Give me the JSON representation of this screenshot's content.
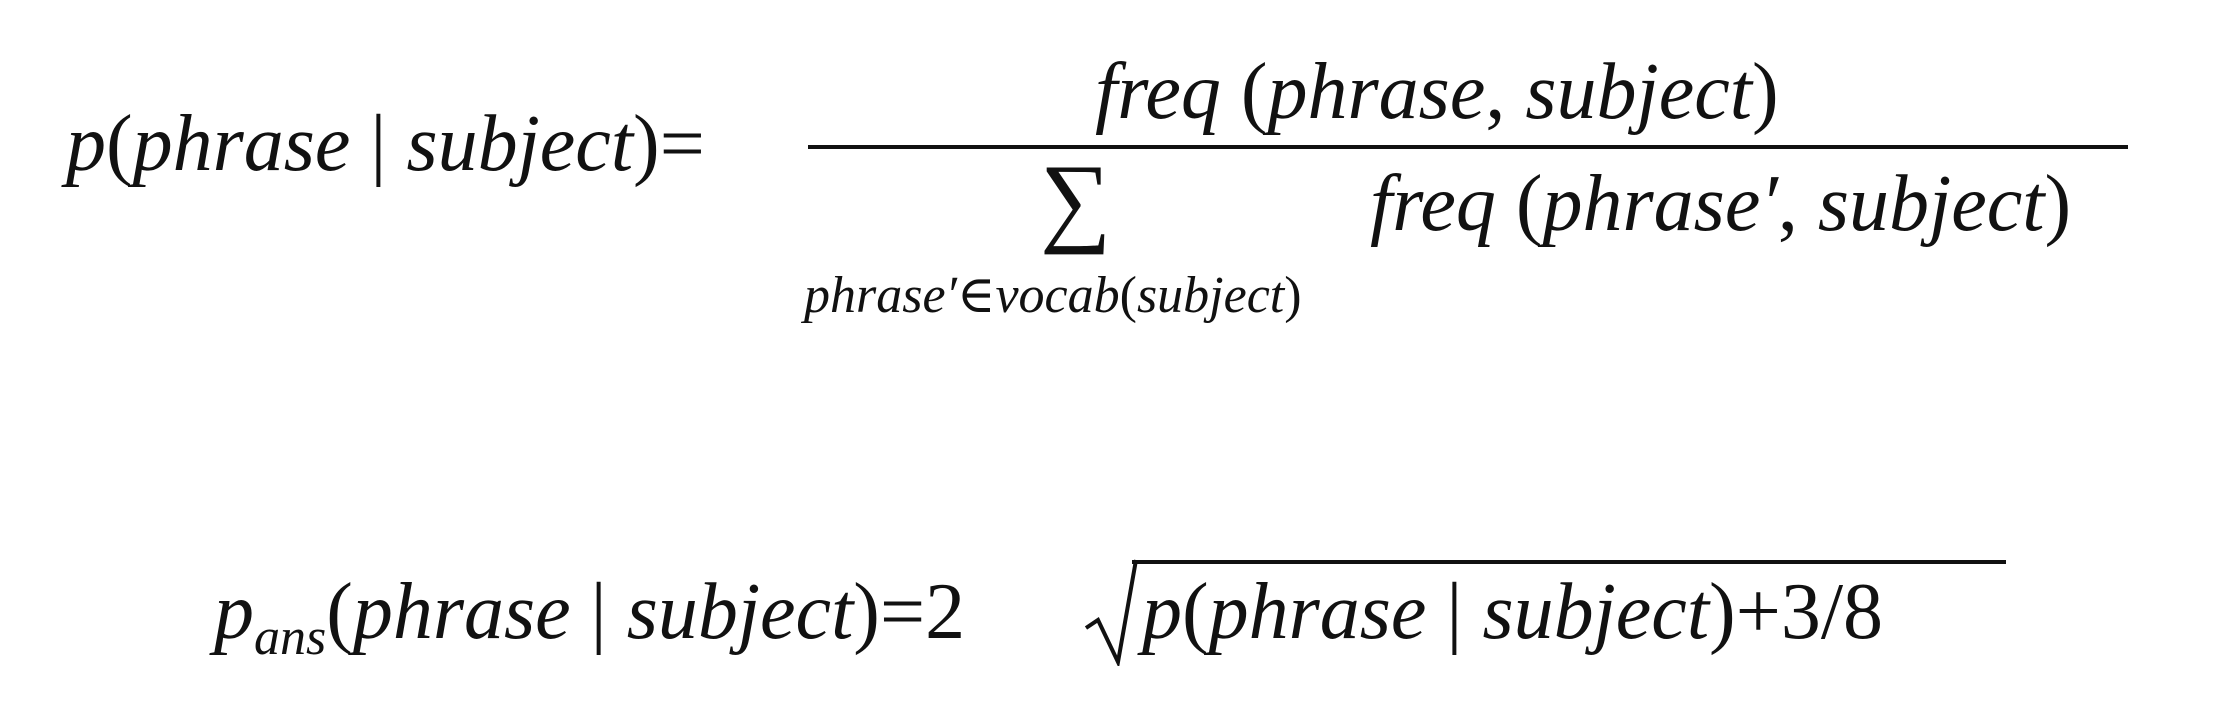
{
  "equation1": {
    "lhs": {
      "p": "p",
      "open": "(",
      "phrase": "phrase",
      "bar": "|",
      "subject": "subject",
      "close": ")",
      "equals": "="
    },
    "numerator": {
      "freq": "freq",
      "open": "(",
      "phrase": "phrase",
      "comma": ",",
      "subject": "subject",
      "close": ")"
    },
    "sum_symbol": "∑",
    "sum_subscript": {
      "phrase_prime": "phrase′",
      "element_of": "∈",
      "vocab": "vocab",
      "open": "(",
      "subject": "subject",
      "close": ")"
    },
    "denominator": {
      "freq": "freq",
      "open": "(",
      "phrase_prime": "phrase′",
      "comma": ",",
      "subject": "subject",
      "close": ")"
    }
  },
  "equation2": {
    "lhs": {
      "p": "p",
      "subscript": "ans",
      "open": "(",
      "phrase": "phrase",
      "bar": "|",
      "subject": "subject",
      "close": ")",
      "equals": "="
    },
    "coefficient": "2",
    "radicand": {
      "p": "p",
      "open": "(",
      "phrase": "phrase",
      "bar": "|",
      "subject": "subject",
      "close": ")",
      "plus": "+",
      "fraction": "3/8"
    }
  }
}
